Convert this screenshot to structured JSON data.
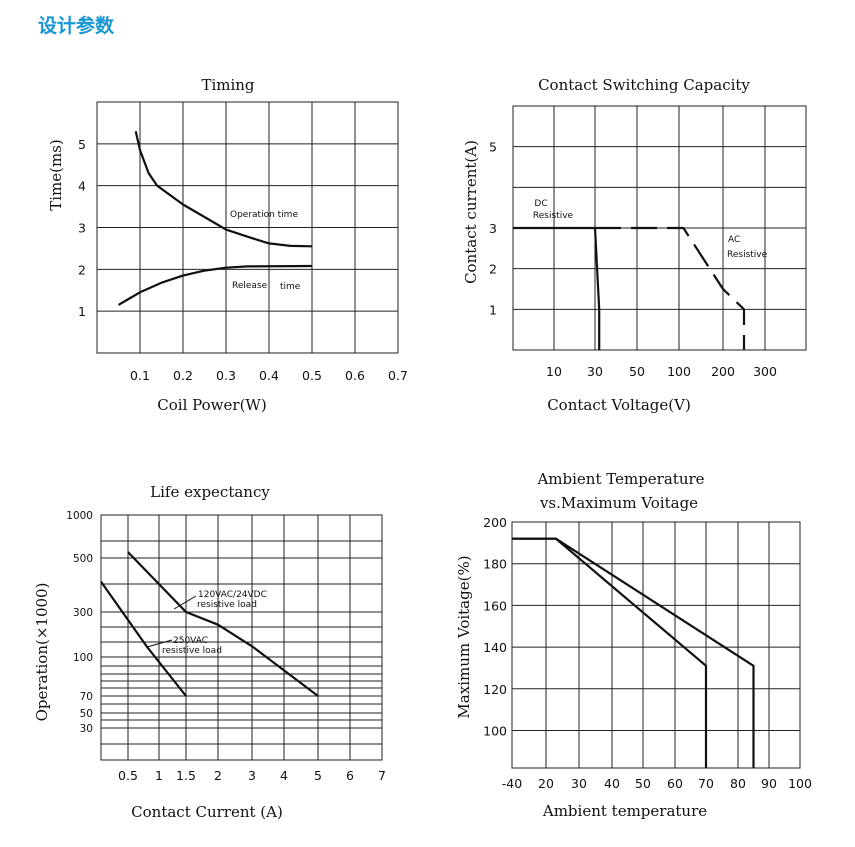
{
  "page": {
    "heading": "设计参数"
  },
  "chart_data": [
    {
      "type": "line",
      "title": "Timing",
      "xlabel": "Coil Power(W)",
      "ylabel": "Time(ms)",
      "x_ticks": [
        "0.1",
        "0.2",
        "0.3",
        "0.4",
        "0.5",
        "0.6",
        "0.7"
      ],
      "y_ticks": [
        "1",
        "2",
        "3",
        "4",
        "5"
      ],
      "xlim": [
        0,
        0.7
      ],
      "ylim": [
        0,
        6
      ],
      "grid": true,
      "series": [
        {
          "name": "Operation time",
          "points": [
            [
              0.09,
              5.3
            ],
            [
              0.1,
              4.85
            ],
            [
              0.12,
              4.3
            ],
            [
              0.14,
              4.0
            ],
            [
              0.2,
              3.55
            ],
            [
              0.25,
              3.25
            ],
            [
              0.3,
              2.95
            ],
            [
              0.35,
              2.78
            ],
            [
              0.4,
              2.62
            ],
            [
              0.45,
              2.56
            ],
            [
              0.5,
              2.55
            ]
          ]
        },
        {
          "name": "Release time",
          "points": [
            [
              0.05,
              1.15
            ],
            [
              0.1,
              1.45
            ],
            [
              0.15,
              1.68
            ],
            [
              0.2,
              1.85
            ],
            [
              0.25,
              1.97
            ],
            [
              0.3,
              2.04
            ],
            [
              0.35,
              2.07
            ],
            [
              0.5,
              2.08
            ]
          ]
        }
      ]
    },
    {
      "type": "line",
      "title": "Contact Switching Capacity",
      "xlabel": "Contact Voltage(V)",
      "ylabel": "Contact current(A)",
      "x_ticks": [
        "10",
        "30",
        "50",
        "100",
        "200",
        "300"
      ],
      "y_ticks": [
        "1",
        "2",
        "3",
        "5"
      ],
      "ylim": [
        0,
        6
      ],
      "grid": true,
      "series": [
        {
          "name": "DC Resistive",
          "points": [
            [
              1,
              3
            ],
            [
              30,
              3
            ],
            [
              32,
              1
            ],
            [
              32,
              0
            ]
          ]
        },
        {
          "name": "AC Resistive",
          "dashed": true,
          "points": [
            [
              30,
              3
            ],
            [
              110,
              3
            ],
            [
              200,
              1.5
            ],
            [
              250,
              1
            ],
            [
              250,
              0
            ]
          ]
        }
      ]
    },
    {
      "type": "line",
      "title": "Life expectancy",
      "xlabel": "Contact Current (A)",
      "ylabel": "Operation(×1000)",
      "x_ticks": [
        "0.5",
        "1",
        "1.5",
        "2",
        "3",
        "4",
        "5",
        "6",
        "7"
      ],
      "y_ticks": [
        "30",
        "50",
        "70",
        "100",
        "300",
        "500",
        "1000"
      ],
      "grid": true,
      "series": [
        {
          "name": "120VAC/24VDC resistive load",
          "points": [
            [
              0.5,
              550
            ],
            [
              1.5,
              300
            ],
            [
              2.0,
              220
            ],
            [
              3.0,
              130
            ],
            [
              5.0,
              70
            ]
          ]
        },
        {
          "name": "250VAC resistive load",
          "points": [
            [
              0,
              400
            ],
            [
              0.8,
              130
            ],
            [
              1.5,
              70
            ]
          ]
        }
      ]
    },
    {
      "type": "line",
      "title": "Ambient Temperature vs.Maximum Voitage",
      "xlabel": "Ambient temperature",
      "ylabel": "Maximum Voitage(%)",
      "x_ticks": [
        "-40",
        "20",
        "30",
        "40",
        "50",
        "60",
        "70",
        "80",
        "90",
        "100"
      ],
      "y_ticks": [
        "100",
        "120",
        "140",
        "160",
        "180",
        "200"
      ],
      "ylim": [
        82,
        200
      ],
      "grid": true,
      "series": [
        {
          "points": [
            [
              -40,
              192
            ],
            [
              23,
              192
            ],
            [
              70,
              131
            ],
            [
              70,
              82
            ]
          ]
        },
        {
          "points": [
            [
              -40,
              192
            ],
            [
              23,
              192
            ],
            [
              85,
              131
            ],
            [
              85,
              82
            ]
          ]
        }
      ]
    }
  ]
}
